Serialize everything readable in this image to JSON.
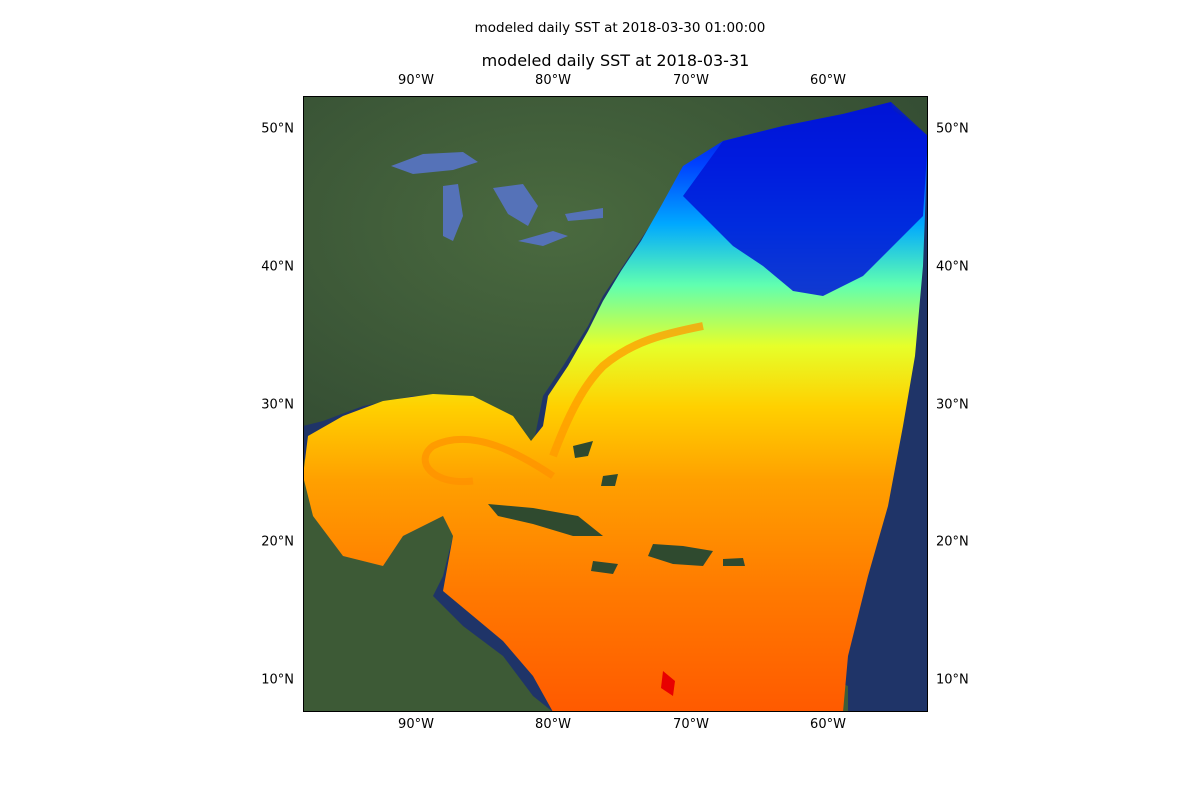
{
  "figure": {
    "suptitle": "modeled daily SST at 2018-03-30 01:00:00",
    "title": "modeled daily SST at 2018-03-31"
  },
  "axes": {
    "lon_ticks": [
      "90°W",
      "80°W",
      "70°W",
      "60°W"
    ],
    "lat_ticks": [
      "50°N",
      "40°N",
      "30°N",
      "20°N",
      "10°N"
    ]
  },
  "map_data": {
    "projection": "PlateCarree",
    "extent": {
      "lon": [
        -98.2,
        -52.8
      ],
      "lat": [
        7.9,
        52.5
      ]
    },
    "basemap": "satellite imagery",
    "field": "sea surface temperature",
    "colormap": "jet",
    "colorbar": "none shown",
    "gridlines": false
  },
  "colors": {
    "ocean_dark": "#1f3468",
    "land": "#3f5a37",
    "sst_cold": "#0010c8",
    "sst_mid": "#e6ff2a",
    "sst_warm": "#ff7a00",
    "sst_hot": "#e80000"
  }
}
